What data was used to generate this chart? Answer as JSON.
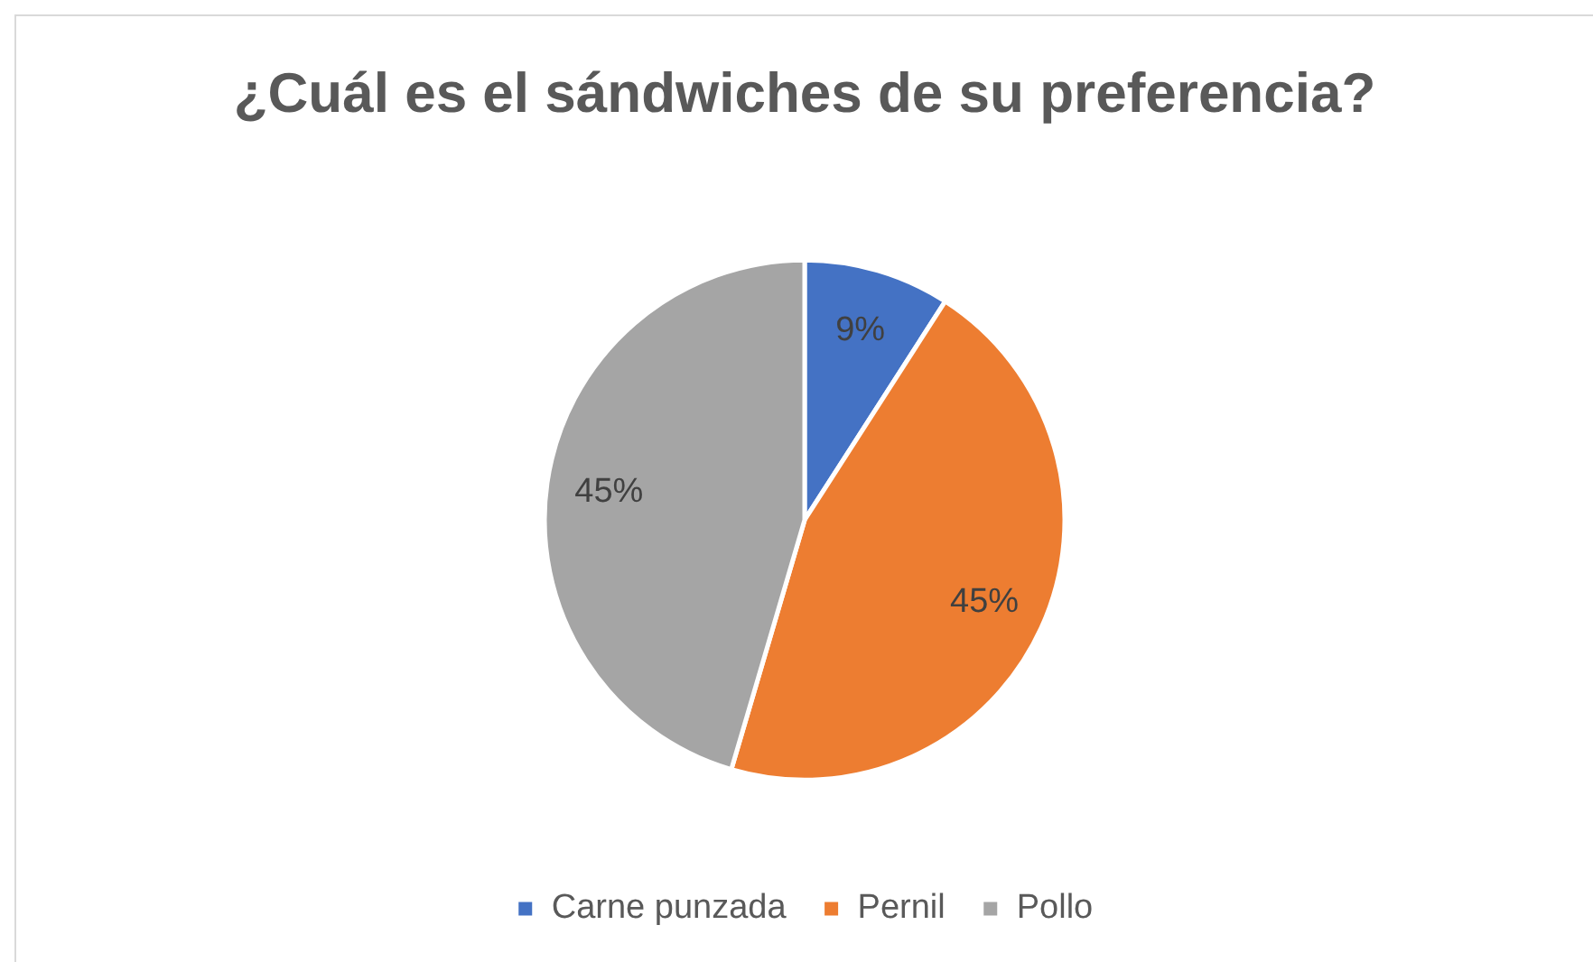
{
  "chart_data": {
    "type": "pie",
    "title": "¿Cuál es el sándwiches de su preferencia?",
    "categories": [
      "Carne punzada",
      "Pernil",
      "Pollo"
    ],
    "values": [
      9,
      45,
      45
    ],
    "value_labels": [
      "9%",
      "45%",
      "45%"
    ],
    "colors": [
      "#4472c4",
      "#ed7d31",
      "#a5a5a5"
    ],
    "legend": "bottom"
  }
}
